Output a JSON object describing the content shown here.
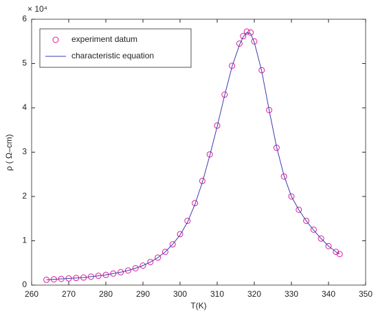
{
  "chart_data": {
    "type": "scatter_line",
    "xlabel": "T(K)",
    "ylabel": "ρ ( Ω–cm)",
    "y_multiplier": "× 10⁴",
    "x": [
      264,
      266,
      268,
      270,
      272,
      274,
      276,
      278,
      280,
      282,
      284,
      286,
      288,
      290,
      292,
      294,
      296,
      298,
      300,
      302,
      304,
      306,
      308,
      310,
      312,
      314,
      316,
      317,
      318,
      319,
      320,
      322,
      324,
      326,
      328,
      330,
      332,
      334,
      336,
      338,
      340,
      342,
      343
    ],
    "series": [
      {
        "name": "experiment datum",
        "color": "#e0189a",
        "marker": "circle",
        "values": [
          0.12,
          0.13,
          0.14,
          0.15,
          0.16,
          0.17,
          0.19,
          0.21,
          0.23,
          0.26,
          0.29,
          0.33,
          0.38,
          0.44,
          0.52,
          0.62,
          0.75,
          0.92,
          1.15,
          1.45,
          1.85,
          2.35,
          2.95,
          3.6,
          4.3,
          4.95,
          5.45,
          5.62,
          5.72,
          5.7,
          5.5,
          4.85,
          3.95,
          3.1,
          2.45,
          2.0,
          1.7,
          1.45,
          1.25,
          1.05,
          0.88,
          0.75,
          0.7
        ]
      },
      {
        "name": "characteristic equation",
        "color": "#3a3ab0",
        "marker": "line",
        "values": [
          0.12,
          0.13,
          0.14,
          0.15,
          0.16,
          0.17,
          0.19,
          0.21,
          0.23,
          0.26,
          0.29,
          0.33,
          0.38,
          0.44,
          0.52,
          0.62,
          0.75,
          0.92,
          1.13,
          1.42,
          1.82,
          2.32,
          2.92,
          3.58,
          4.28,
          4.93,
          5.42,
          5.6,
          5.7,
          5.68,
          5.48,
          4.83,
          3.95,
          3.12,
          2.47,
          2.0,
          1.7,
          1.45,
          1.24,
          1.05,
          0.88,
          0.75,
          0.7
        ]
      }
    ],
    "xlim": [
      260,
      350
    ],
    "xticks": [
      260,
      270,
      280,
      290,
      300,
      310,
      320,
      330,
      340,
      350
    ],
    "ylim": [
      0,
      6
    ],
    "yticks": [
      0,
      1,
      2,
      3,
      4,
      5,
      6
    ],
    "legend": "upper left",
    "grid": false
  }
}
